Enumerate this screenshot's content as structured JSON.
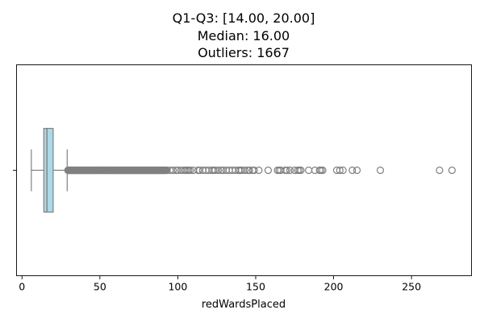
{
  "chart_data": {
    "type": "boxplot",
    "orientation": "horizontal",
    "title_lines": [
      "Q1-Q3: [14.00, 20.00]",
      "Median: 16.00",
      "Outliers: 1667"
    ],
    "xlabel": "redWardsPlaced",
    "ylabel": "",
    "xlim": [
      -3.5,
      288.5
    ],
    "x_ticks": [
      0,
      50,
      100,
      150,
      200,
      250
    ],
    "y_ticks": [
      ""
    ],
    "grid": false,
    "box": {
      "min_whisker": 6,
      "q1": 14,
      "median": 16,
      "q3": 20,
      "max_whisker": 29,
      "fill_color": "#add8e6",
      "line_color": "#808080"
    },
    "outliers_count": 1667,
    "outliers_dense_range": [
      29.5,
      93
    ],
    "outliers_sparse": [
      95,
      97,
      99,
      100,
      102,
      104,
      105,
      106,
      107,
      108,
      110,
      113,
      114,
      116,
      118,
      120,
      122,
      123,
      124,
      126,
      128,
      129,
      131,
      133,
      135,
      137,
      139,
      140,
      141,
      143,
      145,
      146,
      148,
      149,
      152,
      158,
      164,
      165,
      166,
      169,
      170,
      172,
      175,
      177,
      178,
      179,
      184,
      188,
      191,
      192,
      193,
      202,
      204,
      206,
      212,
      215,
      230,
      268,
      276
    ],
    "outlier_color": "#808080"
  }
}
